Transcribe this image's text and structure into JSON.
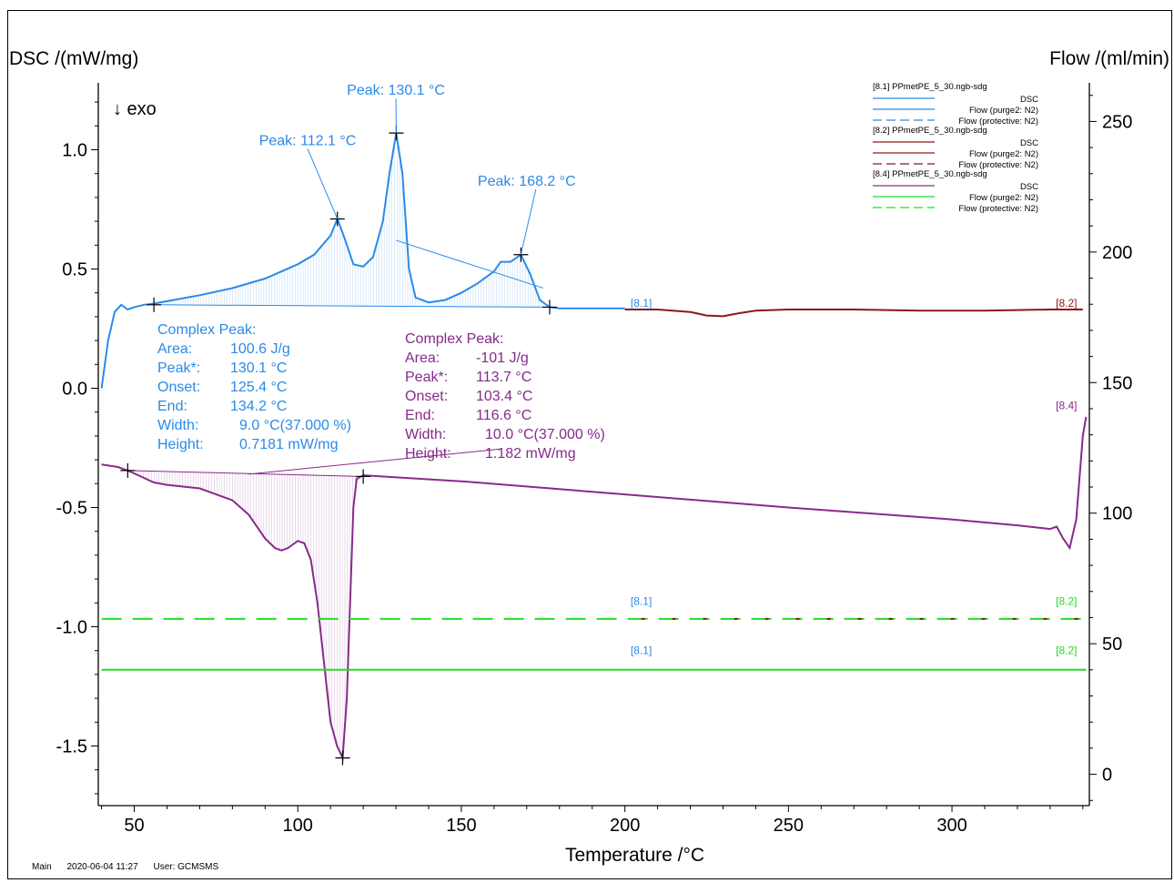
{
  "chart_data": {
    "type": "line",
    "title": "",
    "xlabel": "Temperature /°C",
    "ylabel_left": "DSC /(mW/mg)",
    "ylabel_right": "Flow /(ml/min)",
    "exo_label": "↓ exo",
    "xlim": [
      39,
      342
    ],
    "ylim_left": [
      -1.75,
      1.25
    ],
    "ylim_right": [
      -12,
      262
    ],
    "x_ticks": [
      50,
      100,
      150,
      200,
      250,
      300
    ],
    "y_ticks_left": [
      -1.5,
      -1.0,
      -0.5,
      0.0,
      0.5,
      1.0
    ],
    "y_ticks_right": [
      0,
      50,
      100,
      150,
      200,
      250
    ],
    "grid": false,
    "colors": {
      "blue": "#2a8ae8",
      "darkred": "#8b1a1a",
      "purple": "#862a8a",
      "green": "#22dd22"
    },
    "series": [
      {
        "name": "[8.1]",
        "color": "#2a8ae8",
        "axis": "left",
        "style": "solid",
        "x": [
          40,
          42,
          44,
          46,
          48,
          50,
          53,
          56,
          60,
          70,
          80,
          90,
          100,
          105,
          110,
          112.1,
          114,
          117,
          120,
          123,
          126,
          128,
          130.1,
          132,
          134,
          136,
          140,
          145,
          150,
          155,
          160,
          162,
          165,
          168.2,
          171,
          174,
          177,
          180,
          190,
          200
        ],
        "y": [
          0.0,
          0.2,
          0.32,
          0.35,
          0.33,
          0.34,
          0.35,
          0.355,
          0.365,
          0.39,
          0.42,
          0.46,
          0.52,
          0.56,
          0.64,
          0.71,
          0.64,
          0.52,
          0.51,
          0.55,
          0.7,
          0.9,
          1.07,
          0.9,
          0.5,
          0.38,
          0.36,
          0.37,
          0.4,
          0.44,
          0.49,
          0.53,
          0.53,
          0.56,
          0.48,
          0.37,
          0.34,
          0.335,
          0.335,
          0.335
        ]
      },
      {
        "name": "[8.2]",
        "color": "#8b1a1a",
        "axis": "left",
        "style": "solid",
        "x": [
          200,
          210,
          220,
          225,
          230,
          235,
          240,
          250,
          270,
          290,
          310,
          330,
          340
        ],
        "y": [
          0.33,
          0.33,
          0.32,
          0.305,
          0.302,
          0.315,
          0.325,
          0.33,
          0.33,
          0.325,
          0.325,
          0.33,
          0.33
        ]
      },
      {
        "name": "[8.4]",
        "color": "#862a8a",
        "axis": "left",
        "style": "solid",
        "x": [
          40,
          45,
          48,
          52,
          56,
          60,
          70,
          80,
          85,
          90,
          93,
          95,
          97,
          100,
          102,
          104,
          106,
          108,
          110,
          112,
          113.7,
          115,
          116,
          117,
          118,
          120,
          150,
          200,
          250,
          300,
          320,
          330,
          332,
          334,
          336,
          338,
          340,
          341
        ],
        "y": [
          -0.32,
          -0.33,
          -0.345,
          -0.37,
          -0.395,
          -0.405,
          -0.42,
          -0.47,
          -0.53,
          -0.63,
          -0.67,
          -0.68,
          -0.67,
          -0.64,
          -0.65,
          -0.72,
          -0.9,
          -1.15,
          -1.4,
          -1.5,
          -1.55,
          -1.3,
          -0.9,
          -0.5,
          -0.38,
          -0.365,
          -0.39,
          -0.445,
          -0.5,
          -0.55,
          -0.575,
          -0.59,
          -0.58,
          -0.63,
          -0.67,
          -0.55,
          -0.2,
          -0.12
        ]
      },
      {
        "name": "Flow (protective: N2)",
        "color": "#22dd22",
        "axis": "right",
        "style": "dashed",
        "x": [
          40,
          341
        ],
        "y": [
          59.5,
          59.5
        ]
      },
      {
        "name": "Flow (purge2: N2)",
        "color": "#22dd22",
        "axis": "right",
        "style": "solid",
        "x": [
          40,
          341
        ],
        "y": [
          40,
          40
        ]
      }
    ],
    "point_labels": [
      {
        "text": "[8.1]",
        "color": "#2a8ae8",
        "x": 205,
        "y": 0.33
      },
      {
        "text": "[8.2]",
        "color": "#8b1a1a",
        "x": 335,
        "y": 0.33
      },
      {
        "text": "[8.4]",
        "color": "#862a8a",
        "x": 335,
        "y": -0.1
      },
      {
        "text": "[8.1]",
        "color": "#2a8ae8",
        "x": 205,
        "y": -0.92
      },
      {
        "text": "[8.2]",
        "color": "#22dd22",
        "x": 335,
        "y": -0.92
      },
      {
        "text": "[8.1]",
        "color": "#2a8ae8",
        "x": 205,
        "y": -1.125
      },
      {
        "text": "[8.2]",
        "color": "#22dd22",
        "x": 335,
        "y": -1.125
      }
    ],
    "annotations": [
      {
        "text": "Peak: 112.1 °C",
        "color": "#2a8ae8",
        "x": 112.1,
        "y": 0.71,
        "label_x": 103,
        "label_y": 1.02
      },
      {
        "text": "Peak: 130.1 °C",
        "color": "#2a8ae8",
        "x": 130.1,
        "y": 1.07,
        "label_x": 130,
        "label_y": 1.23
      },
      {
        "text": "Peak: 168.2 °C",
        "color": "#2a8ae8",
        "x": 168.2,
        "y": 0.56,
        "label_x": 170,
        "label_y": 0.85
      }
    ],
    "markers": [
      {
        "color": "#2a8ae8",
        "x": 56,
        "y": 0.35
      },
      {
        "color": "#2a8ae8",
        "x": 112.1,
        "y": 0.71
      },
      {
        "color": "#2a8ae8",
        "x": 130.1,
        "y": 1.07
      },
      {
        "color": "#2a8ae8",
        "x": 168.2,
        "y": 0.56
      },
      {
        "color": "#2a8ae8",
        "x": 177,
        "y": 0.34
      },
      {
        "color": "#862a8a",
        "x": 48,
        "y": -0.345
      },
      {
        "color": "#862a8a",
        "x": 120,
        "y": -0.37
      },
      {
        "color": "#862a8a",
        "x": 113.7,
        "y": -1.55
      }
    ],
    "peak_boxes": [
      {
        "color": "#2a8ae8",
        "title": "Complex Peak:",
        "rows": [
          {
            "label": "Area:",
            "value": "100.6 J/g"
          },
          {
            "label": "Peak*:",
            "value": "130.1 °C"
          },
          {
            "label": "Onset:",
            "value": "125.4 °C"
          },
          {
            "label": "End:",
            "value": "134.2 °C"
          },
          {
            "label": "Width:",
            "value": "9.0 °C(37.000 %)"
          },
          {
            "label": "Height:",
            "value": "0.7181 mW/mg"
          }
        ]
      },
      {
        "color": "#862a8a",
        "title": "Complex Peak:",
        "rows": [
          {
            "label": "Area:",
            "value": "-101 J/g"
          },
          {
            "label": "Peak*:",
            "value": "113.7 °C"
          },
          {
            "label": "Onset:",
            "value": "103.4 °C"
          },
          {
            "label": "End:",
            "value": "116.6 °C"
          },
          {
            "label": "Width:",
            "value": "10.0 °C(37.000 %)"
          },
          {
            "label": "Height:",
            "value": "1.182 mW/mg"
          }
        ]
      }
    ],
    "legend": {
      "position": "top-right",
      "groups": [
        {
          "file": "[8.1]  PPmetPE_5_30.ngb-sdg",
          "color": "#2a8ae8",
          "entries": [
            {
              "label": "DSC",
              "style": "solid"
            },
            {
              "label": "Flow (purge2: N2)",
              "style": "solid"
            },
            {
              "label": "Flow (protective: N2)",
              "style": "dashed"
            }
          ]
        },
        {
          "file": "[8.2]  PPmetPE_5_30.ngb-sdg",
          "color": "#8b1a1a",
          "entries": [
            {
              "label": "DSC",
              "style": "solid"
            },
            {
              "label": "Flow (purge2: N2)",
              "style": "solid"
            },
            {
              "label": "Flow (protective: N2)",
              "style": "dashed"
            }
          ]
        },
        {
          "file": "[8.4]  PPmetPE_5_30.ngb-sdg",
          "color": "#862a8a",
          "entries": [
            {
              "label": "DSC",
              "style": "solid"
            }
          ]
        },
        {
          "file": "",
          "color": "#22dd22",
          "entries": [
            {
              "label": "Flow (purge2: N2)",
              "style": "solid"
            },
            {
              "label": "Flow (protective: N2)",
              "style": "dashed"
            }
          ]
        }
      ]
    }
  },
  "footer": {
    "program": "Main",
    "datetime": "2020-06-04 11:27",
    "user": "User: GCMSMS"
  }
}
